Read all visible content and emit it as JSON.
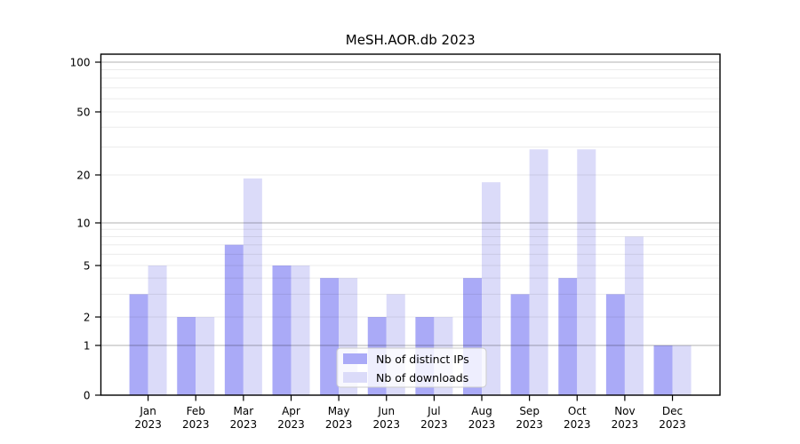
{
  "figure": {
    "background": "#ffffff",
    "axis_color": "#000000"
  },
  "chart_data": {
    "type": "bar",
    "title": "MeSH.AOR.db 2023",
    "categories": [
      "Jan 2023",
      "Feb 2023",
      "Mar 2023",
      "Apr 2023",
      "May 2023",
      "Jun 2023",
      "Jul 2023",
      "Aug 2023",
      "Sep 2023",
      "Oct 2023",
      "Nov 2023",
      "Dec 2023"
    ],
    "x_tick_line1": [
      "Jan",
      "Feb",
      "Mar",
      "Apr",
      "May",
      "Jun",
      "Jul",
      "Aug",
      "Sep",
      "Oct",
      "Nov",
      "Dec"
    ],
    "x_tick_line2": [
      "2023",
      "2023",
      "2023",
      "2023",
      "2023",
      "2023",
      "2023",
      "2023",
      "2023",
      "2023",
      "2023",
      "2023"
    ],
    "series": [
      {
        "name": "Nb of distinct IPs",
        "color": "#aaaaf7",
        "values": [
          3,
          2,
          7,
          5,
          4,
          2,
          2,
          4,
          3,
          4,
          3,
          1
        ]
      },
      {
        "name": "Nb of downloads",
        "color": "#dbdbf9",
        "values": [
          5,
          2,
          19,
          5,
          4,
          3,
          2,
          18,
          29,
          29,
          8,
          1
        ]
      }
    ],
    "yscale": "log",
    "ylim": [
      0,
      100
    ],
    "yticks": [
      0,
      1,
      2,
      5,
      10,
      20,
      50,
      100
    ],
    "gridlines": {
      "major": [
        1,
        10,
        100
      ],
      "minor": [
        2,
        3,
        4,
        5,
        6,
        7,
        8,
        9,
        20,
        30,
        40,
        50,
        60,
        70,
        80,
        90
      ]
    },
    "grid": true,
    "legend": {
      "position": "lower center",
      "entries": [
        "Nb of distinct IPs",
        "Nb of downloads"
      ]
    }
  }
}
